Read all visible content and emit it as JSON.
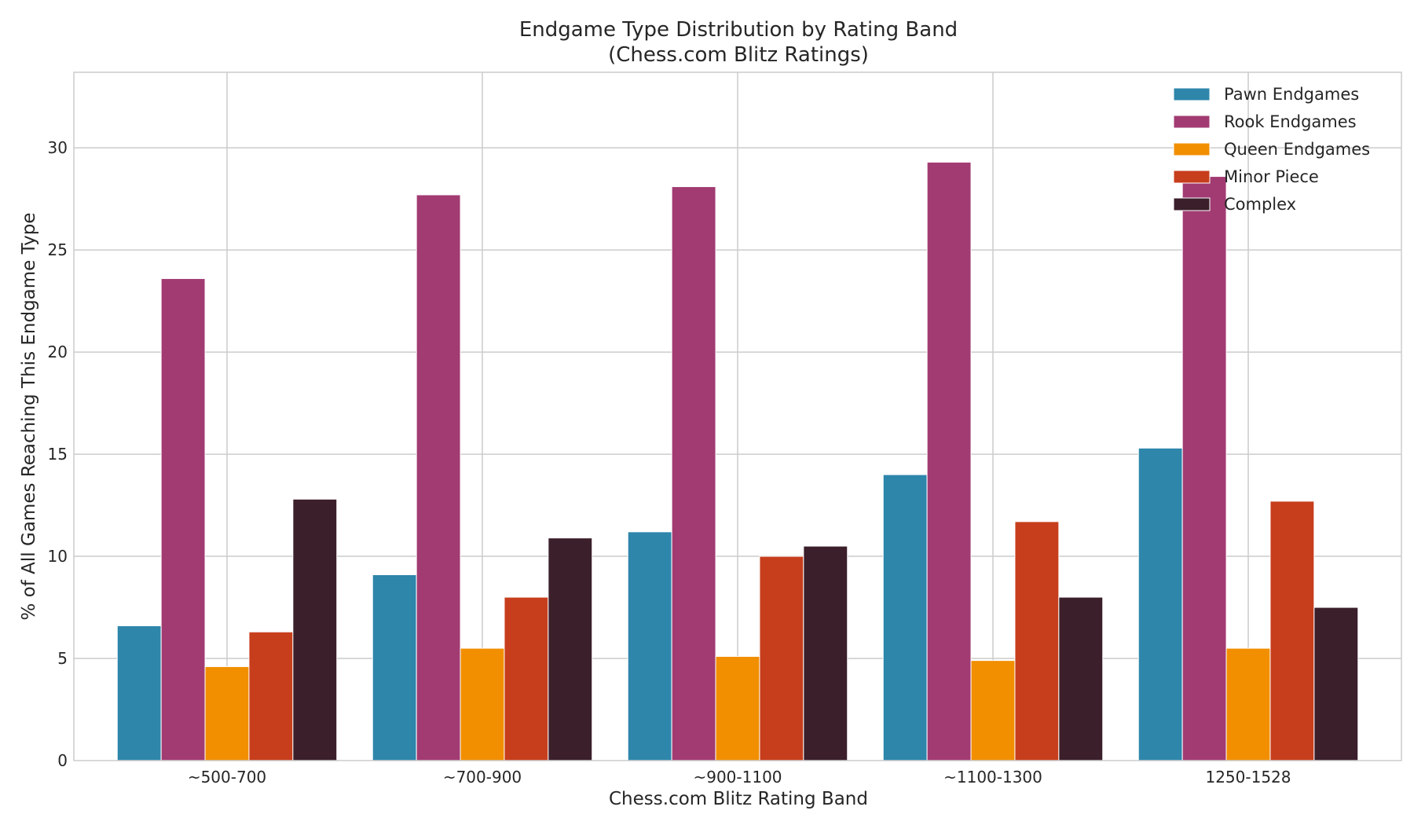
{
  "chart_data": {
    "type": "bar",
    "title": "Endgame Type Distribution by Rating Band",
    "subtitle": "(Chess.com Blitz Ratings)",
    "xlabel": "Chess.com Blitz Rating Band",
    "ylabel": "% of All Games Reaching This Endgame Type",
    "categories": [
      "~500-700",
      "~700-900",
      "~900-1100",
      "~1100-1300",
      "1250-1528"
    ],
    "ylim": [
      0,
      33.7
    ],
    "yticks": [
      0,
      5,
      10,
      15,
      20,
      25,
      30
    ],
    "grid": true,
    "legend_position": "top-right",
    "series": [
      {
        "name": "Pawn Endgames",
        "color": "#2e86ab",
        "values": [
          6.6,
          9.1,
          11.2,
          14.0,
          15.3
        ]
      },
      {
        "name": "Rook Endgames",
        "color": "#a23b72",
        "values": [
          23.6,
          27.7,
          28.1,
          29.3,
          28.6
        ]
      },
      {
        "name": "Queen Endgames",
        "color": "#f18f01",
        "values": [
          4.6,
          5.5,
          5.1,
          4.9,
          5.5
        ]
      },
      {
        "name": "Minor Piece",
        "color": "#c73e1d",
        "values": [
          6.3,
          8.0,
          10.0,
          11.7,
          12.7
        ]
      },
      {
        "name": "Complex",
        "color": "#3b1f2b",
        "values": [
          12.8,
          10.9,
          10.5,
          8.0,
          7.5
        ]
      }
    ]
  }
}
